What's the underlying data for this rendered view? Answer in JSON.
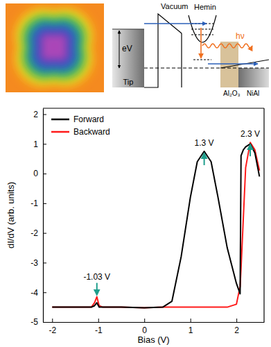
{
  "chart_data": {
    "type": "line",
    "x_label": "Bias (V)",
    "y_label": "dI/dV (arb. units)",
    "x": [
      -2,
      -1.5,
      -1.15,
      -1.08,
      -1.03,
      -0.98,
      -0.9,
      -0.5,
      0,
      0.4,
      0.6,
      0.8,
      1.0,
      1.15,
      1.3,
      1.45,
      1.6,
      1.8,
      2.0,
      2.08,
      2.1,
      2.15,
      2.2,
      2.3,
      2.4,
      2.5
    ],
    "series": [
      {
        "name": "Forward",
        "color": "#000000",
        "values": [
          -4.5,
          -4.5,
          -4.5,
          -4.45,
          -4.35,
          -4.5,
          -4.5,
          -4.5,
          -4.52,
          -4.5,
          -4.3,
          -2.8,
          -0.8,
          0.4,
          0.75,
          0.4,
          -0.8,
          -2.5,
          -3.7,
          -4.05,
          0.6,
          0.8,
          0.9,
          1.0,
          0.7,
          -0.1
        ]
      },
      {
        "name": "Backward",
        "color": "#ff1a1a",
        "values": [
          -4.5,
          -4.5,
          -4.5,
          -4.35,
          -4.15,
          -4.45,
          -4.5,
          -4.5,
          -4.52,
          -4.5,
          -4.5,
          -4.5,
          -4.5,
          -4.5,
          -4.5,
          -4.5,
          -4.5,
          -4.5,
          -4.4,
          -3.8,
          -3.2,
          -1.5,
          0.2,
          1.05,
          0.8,
          0.1
        ]
      }
    ],
    "xlim": [
      -2.2,
      2.6
    ],
    "xticks": [
      -2,
      -1,
      0,
      1,
      2
    ],
    "ylim": [
      -5,
      2.2
    ],
    "yticks": [
      -5,
      -4,
      -3,
      -2,
      -1,
      0,
      1,
      2
    ],
    "legend": "upper left",
    "annotations": [
      {
        "text": "-1.03 V",
        "x": -1.03,
        "y": -4.15
      },
      {
        "text": "1.3 V",
        "x": 1.3,
        "y": 0.75
      },
      {
        "text": "2.3 V",
        "x": 2.3,
        "y": 1.05
      }
    ]
  },
  "diagram": {
    "labels": {
      "vacuum": "Vacuum",
      "hemin": "Hemin",
      "energy": "eV",
      "photon": "hν",
      "tip": "Tip",
      "oxide": "Al₂O₃",
      "metal": "NiAl"
    }
  }
}
